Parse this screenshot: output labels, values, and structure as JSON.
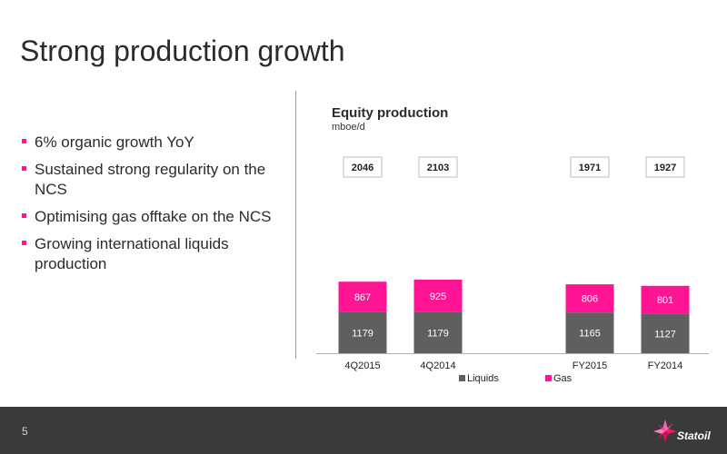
{
  "page": {
    "title": "Strong production growth",
    "bullets": [
      "6% organic growth YoY",
      "Sustained strong regularity on the NCS",
      "Optimising gas offtake on the NCS",
      "Growing international liquids production"
    ],
    "page_number": "5",
    "brand": "Statoil"
  },
  "colors": {
    "accent": "#ff1493",
    "gas": "#ff1493",
    "liquids": "#5f5f5f",
    "footer": "#3a3a3a"
  },
  "chart_data": {
    "type": "bar",
    "stacked": true,
    "title": "Equity production",
    "subtitle": "mboe/d",
    "categories": [
      "4Q2015",
      "4Q2014",
      "FY2015",
      "FY2014"
    ],
    "series": [
      {
        "name": "Liquids",
        "values": [
          1179,
          1179,
          1165,
          1127
        ]
      },
      {
        "name": "Gas",
        "values": [
          867,
          925,
          806,
          801
        ]
      }
    ],
    "totals": [
      2046,
      2103,
      1971,
      1927
    ],
    "legend_position": "bottom",
    "grid": false,
    "ylim": [
      0,
      2300
    ]
  }
}
